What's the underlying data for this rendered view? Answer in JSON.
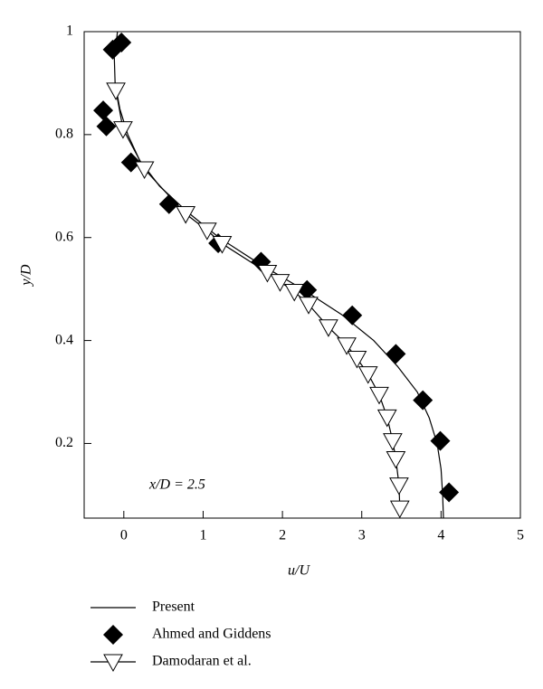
{
  "chart_data": {
    "type": "line",
    "x_label": "u/U",
    "y_label": "y/D",
    "annotation": "x/D = 2.5",
    "xlim": [
      -0.5,
      5
    ],
    "ylim": [
      0.055,
      1
    ],
    "xticks": [
      0,
      1,
      2,
      3,
      4,
      5
    ],
    "yticks": [
      0.2,
      0.4,
      0.6,
      0.8,
      1
    ],
    "series": [
      {
        "name": "Present",
        "color": "#000000",
        "marker": "none",
        "line": true,
        "x": [
          -0.08,
          -0.12,
          -0.11,
          -0.05,
          0.05,
          0.2,
          0.45,
          0.8,
          1.2,
          1.7,
          2.25,
          2.75,
          3.15,
          3.45,
          3.7,
          3.85,
          3.95,
          4.0,
          4.02,
          4.03
        ],
        "values": [
          1.0,
          0.95,
          0.9,
          0.85,
          0.8,
          0.75,
          0.7,
          0.65,
          0.6,
          0.55,
          0.5,
          0.45,
          0.4,
          0.35,
          0.3,
          0.25,
          0.2,
          0.15,
          0.1,
          0.055
        ]
      },
      {
        "name": "Ahmed and Giddens",
        "color": "#000000",
        "marker": "diamond",
        "line": false,
        "x": [
          -0.03,
          -0.14,
          -0.26,
          -0.22,
          0.09,
          0.57,
          1.19,
          1.73,
          2.31,
          2.88,
          3.43,
          3.77,
          3.99,
          4.1
        ],
        "values": [
          0.979,
          0.965,
          0.847,
          0.816,
          0.746,
          0.665,
          0.589,
          0.553,
          0.498,
          0.449,
          0.374,
          0.284,
          0.205,
          0.105
        ]
      },
      {
        "name": "Damodaran et al.",
        "color": "#000000",
        "marker": "triangle-down",
        "line": true,
        "x": [
          -0.1,
          -0.01,
          0.26,
          0.78,
          1.05,
          1.24,
          1.81,
          1.97,
          2.15,
          2.33,
          2.58,
          2.81,
          2.94,
          3.08,
          3.22,
          3.32,
          3.39,
          3.43,
          3.47,
          3.48
        ],
        "values": [
          0.886,
          0.811,
          0.733,
          0.646,
          0.614,
          0.588,
          0.532,
          0.514,
          0.495,
          0.47,
          0.426,
          0.391,
          0.365,
          0.335,
          0.295,
          0.251,
          0.205,
          0.17,
          0.119,
          0.074
        ]
      }
    ]
  }
}
